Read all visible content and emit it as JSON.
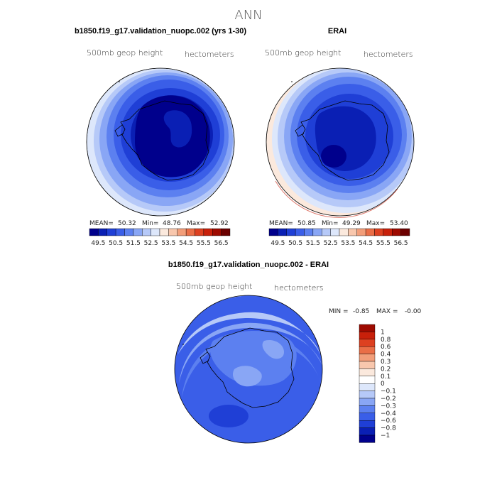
{
  "page": {
    "title": "ANN"
  },
  "chart_data": [
    {
      "type": "heatmap",
      "title": "b1850.f19_g17.validation_nuopc.002 (yrs 1-30)",
      "subtitle_left": "500mb geop height",
      "subtitle_right": "hectometers",
      "stats": {
        "mean_label": "MEAN=",
        "mean": "50.32",
        "min_label": "Min=",
        "min": "48.76",
        "max_label": "Max=",
        "max": "52.92"
      },
      "colorbar_levels": [
        "49.5",
        "50.5",
        "51.5",
        "52.5",
        "53.5",
        "54.5",
        "55.5",
        "56.5"
      ],
      "colorbar_colors": [
        "#00008c",
        "#0a1fb4",
        "#1f3fd6",
        "#3a5ee8",
        "#5c80f0",
        "#89a6f5",
        "#b6c9f8",
        "#dde7fb",
        "#fbe9dd",
        "#f8c7ad",
        "#f29e7a",
        "#ea6e47",
        "#dd4020",
        "#c8200a",
        "#9e0a00",
        "#6b0000"
      ]
    },
    {
      "type": "heatmap",
      "title": "ERAI",
      "subtitle_left": "500mb geop height",
      "subtitle_right": "hectometers",
      "stats": {
        "mean_label": "MEAN=",
        "mean": "50.85",
        "min_label": "Min=",
        "min": "49.29",
        "max_label": "Max=",
        "max": "53.40"
      },
      "colorbar_levels": [
        "49.5",
        "50.5",
        "51.5",
        "52.5",
        "53.5",
        "54.5",
        "55.5",
        "56.5"
      ],
      "colorbar_colors": [
        "#00008c",
        "#0a1fb4",
        "#1f3fd6",
        "#3a5ee8",
        "#5c80f0",
        "#89a6f5",
        "#b6c9f8",
        "#dde7fb",
        "#fbe9dd",
        "#f8c7ad",
        "#f29e7a",
        "#ea6e47",
        "#dd4020",
        "#c8200a",
        "#9e0a00",
        "#6b0000"
      ]
    },
    {
      "type": "heatmap",
      "title": "b1850.f19_g17.validation_nuopc.002 - ERAI",
      "subtitle_left": "500mb geop height",
      "subtitle_right": "hectometers",
      "stats": {
        "min_label": "MIN =",
        "min": "-0.85",
        "max_label": "MAX =",
        "max": "-0.00"
      },
      "colorbar_levels": [
        "1",
        "0.8",
        "0.6",
        "0.4",
        "0.3",
        "0.2",
        "0.1",
        "0",
        "-0.1",
        "-0.2",
        "-0.3",
        "-0.4",
        "-0.6",
        "-0.8",
        "-1"
      ],
      "colorbar_colors": [
        "#9e0a00",
        "#c8200a",
        "#dd4020",
        "#ea6e47",
        "#f29e7a",
        "#f8c7ad",
        "#fbe9dd",
        "#ffffff",
        "#dde7fb",
        "#b6c9f8",
        "#89a6f5",
        "#5c80f0",
        "#3a5ee8",
        "#1f3fd6",
        "#0a1fb4",
        "#00008c"
      ]
    }
  ]
}
